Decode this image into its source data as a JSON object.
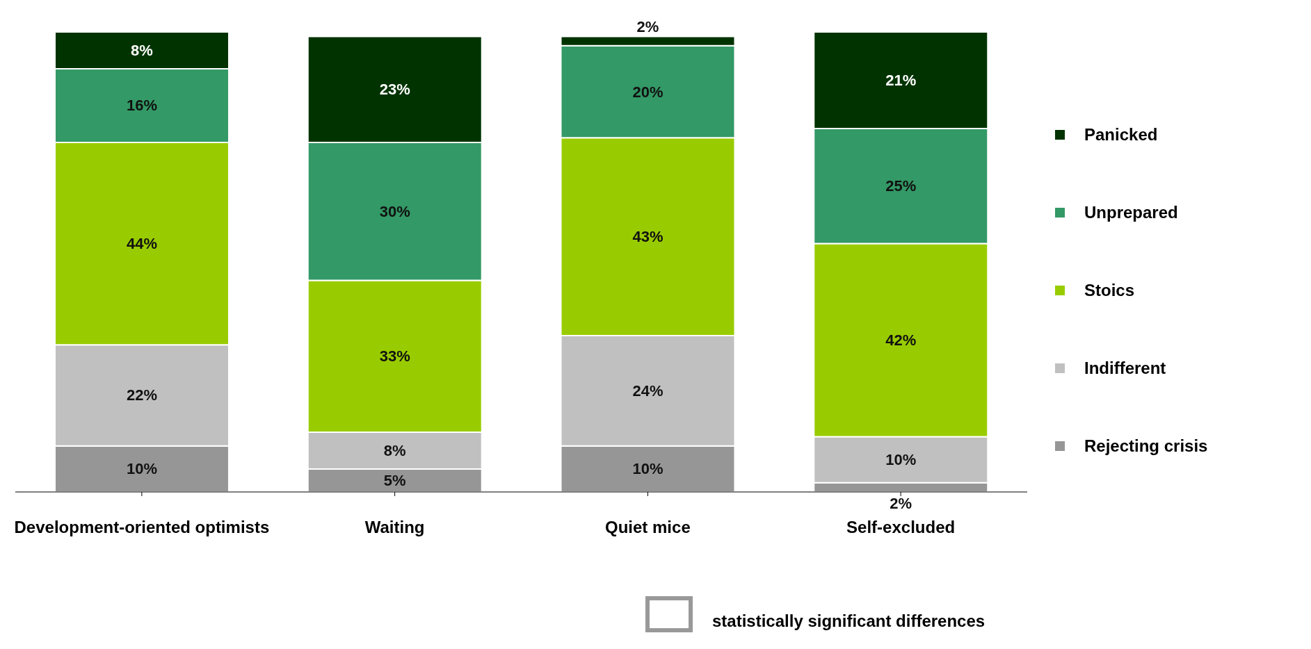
{
  "chart_data": {
    "type": "bar",
    "stacked": true,
    "legend": "right",
    "grid": false,
    "categories": [
      "Development-oriented optimists",
      "Waiting",
      "Quiet mice",
      "Self-excluded"
    ],
    "series": [
      {
        "name": "Rejecting crisis",
        "color": "#969696",
        "values": [
          10,
          5,
          10,
          2
        ],
        "value_labels": [
          "10%",
          "5%",
          "10%",
          "2%"
        ]
      },
      {
        "name": "Indifferent",
        "color": "#c0c0c0",
        "values": [
          22,
          8,
          24,
          10
        ],
        "value_labels": [
          "22%",
          "8%",
          "24%",
          "10%"
        ]
      },
      {
        "name": "Stoics",
        "color": "#99cc00",
        "values": [
          44,
          33,
          43,
          42
        ],
        "value_labels": [
          "44%",
          "33%",
          "43%",
          "42%"
        ]
      },
      {
        "name": "Unprepared",
        "color": "#339966",
        "values": [
          16,
          30,
          20,
          25
        ],
        "value_labels": [
          "16%",
          "30%",
          "20%",
          "25%"
        ]
      },
      {
        "name": "Panicked",
        "color": "#003300",
        "values": [
          8,
          23,
          2,
          21
        ],
        "value_labels": [
          "8%",
          "23%",
          "2%",
          "21%"
        ]
      }
    ],
    "annotations": [
      "statistically significant differences"
    ]
  }
}
